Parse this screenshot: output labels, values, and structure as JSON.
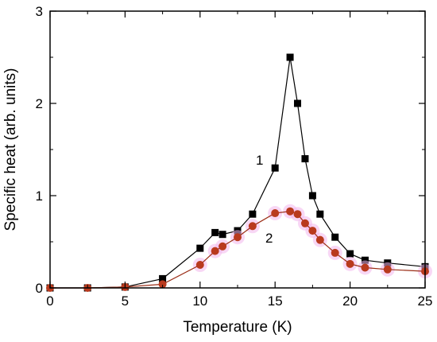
{
  "chart_data": {
    "type": "line",
    "title": "",
    "xlabel": "Temperature (K)",
    "ylabel": "Specific heat (arb. units)",
    "xlim": [
      0,
      25
    ],
    "ylim": [
      0,
      3
    ],
    "x_ticks": [
      "0",
      "5",
      "10",
      "15",
      "20",
      "25"
    ],
    "y_ticks": [
      "0",
      "1",
      "2",
      "3"
    ],
    "grid": false,
    "annotations": [
      "1",
      "2"
    ],
    "series": [
      {
        "label": "1",
        "marker": "square",
        "line_color": "#000000",
        "marker_color": "#000000",
        "x": [
          0,
          2.5,
          5,
          7.5,
          10,
          11,
          11.5,
          12.5,
          13.5,
          15,
          16,
          16.5,
          17,
          17.5,
          18,
          19,
          20,
          21,
          22.5,
          25
        ],
        "y": [
          0,
          0,
          0.01,
          0.1,
          0.43,
          0.6,
          0.58,
          0.62,
          0.8,
          1.3,
          2.5,
          2.0,
          1.4,
          1.0,
          0.8,
          0.55,
          0.37,
          0.3,
          0.27,
          0.23
        ]
      },
      {
        "label": "2",
        "marker": "circle",
        "line_color": "#9b2d16",
        "marker_color": "#b93a1e",
        "halo_color": "#f3b7ec",
        "x": [
          0,
          2.5,
          5,
          7.5,
          10,
          11,
          11.5,
          12.5,
          13.5,
          15,
          16,
          16.5,
          17,
          17.5,
          18,
          19,
          20,
          21,
          22.5,
          25
        ],
        "y": [
          0,
          0,
          0.01,
          0.04,
          0.25,
          0.4,
          0.45,
          0.55,
          0.67,
          0.81,
          0.83,
          0.8,
          0.7,
          0.62,
          0.52,
          0.38,
          0.26,
          0.22,
          0.2,
          0.18
        ]
      }
    ]
  }
}
